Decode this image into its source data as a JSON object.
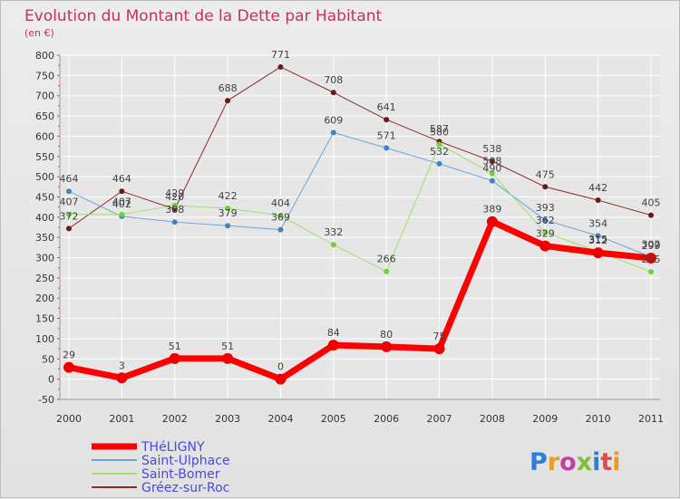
{
  "chart_data": {
    "type": "line",
    "title": "Evolution du Montant de la Dette par Habitant",
    "subtitle": "(en €)",
    "xlabel": "",
    "ylabel": "",
    "x": [
      "2000",
      "2001",
      "2002",
      "2003",
      "2004",
      "2005",
      "2006",
      "2007",
      "2008",
      "2009",
      "2010",
      "2011"
    ],
    "ylim": [
      -50,
      800
    ],
    "yticks": [
      -50,
      0,
      50,
      100,
      150,
      200,
      250,
      300,
      350,
      400,
      450,
      500,
      550,
      600,
      650,
      700,
      750,
      800
    ],
    "ytick_labels": [
      "-50",
      "0",
      "50",
      "100",
      "150",
      "200",
      "250",
      "300",
      "350",
      "400",
      "450",
      "500",
      "550",
      "600",
      "650",
      "700",
      "750",
      "800"
    ],
    "grid": true,
    "legend_position": "bottom-left",
    "series": [
      {
        "name": "Gréez-sur-Roc",
        "color": "#8b2b2b",
        "marker": "#6b1818",
        "width": 1,
        "values": [
          372,
          464,
          420,
          688,
          771,
          708,
          641,
          587,
          538,
          475,
          442,
          405
        ],
        "labels": [
          "372",
          "464",
          "420",
          "688",
          "771",
          "708",
          "641",
          "587",
          "538",
          "475",
          "442",
          "405"
        ]
      },
      {
        "name": "Saint-Ulphace",
        "color": "#6aa6d8",
        "marker": "#3f83c6",
        "width": 1,
        "values": [
          464,
          402,
          388,
          379,
          369,
          609,
          571,
          532,
          490,
          393,
          354,
          302
        ],
        "labels": [
          "464",
          "402",
          "388",
          "379",
          "369",
          "609",
          "571",
          "532",
          "490",
          "393",
          "354",
          "302"
        ]
      },
      {
        "name": "Saint-Bomer",
        "color": "#9ee06a",
        "marker": "#6fcf3a",
        "width": 1,
        "values": [
          407,
          407,
          429,
          422,
          404,
          332,
          266,
          580,
          508,
          362,
          315,
          265
        ],
        "labels": [
          "407",
          "407",
          "429",
          "422",
          "404",
          "332",
          "266",
          "580",
          "508",
          "362",
          "315",
          "265"
        ]
      },
      {
        "name": "THéLIGNY",
        "color": "#ff0000",
        "marker": "#ee0000",
        "width": 7,
        "values": [
          29,
          3,
          51,
          51,
          0,
          84,
          80,
          75,
          389,
          329,
          312,
          299
        ],
        "labels": [
          "29",
          "3",
          "51",
          "51",
          "0",
          "84",
          "80",
          "75",
          "389",
          "329",
          "312",
          "299"
        ]
      }
    ],
    "legend": [
      {
        "name": "THéLIGNY",
        "color": "#ff0000",
        "text_color": "#4a4ad8",
        "width": 7
      },
      {
        "name": "Saint-Ulphace",
        "color": "#6aa6d8",
        "text_color": "#4a4ad8",
        "width": 2
      },
      {
        "name": "Saint-Bomer",
        "color": "#9ee06a",
        "text_color": "#4a4ad8",
        "width": 2
      },
      {
        "name": "Gréez-sur-Roc",
        "color": "#8b2b2b",
        "text_color": "#4a4ad8",
        "width": 2
      }
    ]
  },
  "logo": {
    "text": "Proxiti",
    "letter_colors": [
      "#2c7fd6",
      "#e89b26",
      "#c23fa8",
      "#7fbf3f",
      "#2c7fd6",
      "#e24a4a",
      "#e89b26"
    ]
  }
}
